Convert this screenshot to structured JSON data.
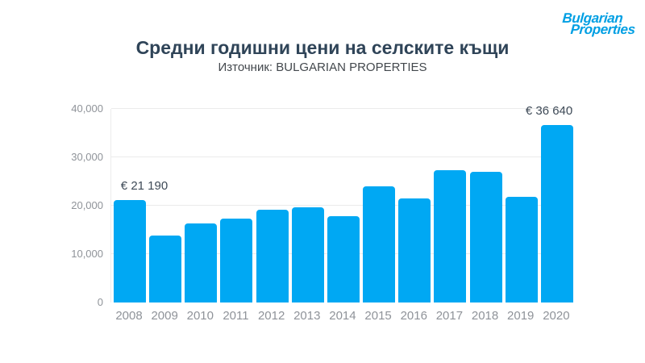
{
  "header": {
    "title": "Средни годишни цени на селските къщи",
    "subtitle": "Източник: BULGARIAN PROPERTIES",
    "logo": {
      "line1": "Bulgarian",
      "line2": "Properties",
      "color": "#009FE3"
    }
  },
  "chart_data": {
    "type": "bar",
    "title": "Средни годишни цени на селските къщи",
    "subtitle": "Източник: BULGARIAN PROPERTIES",
    "categories": [
      "2008",
      "2009",
      "2010",
      "2011",
      "2012",
      "2013",
      "2014",
      "2015",
      "2016",
      "2017",
      "2018",
      "2019",
      "2020"
    ],
    "values": [
      21190,
      13900,
      16300,
      17300,
      19200,
      19700,
      17900,
      24000,
      21500,
      27400,
      27000,
      21900,
      36640
    ],
    "xlabel": "",
    "ylabel": "",
    "ylim": [
      0,
      40000
    ],
    "yticks": [
      0,
      10000,
      20000,
      30000,
      40000
    ],
    "ytick_labels": [
      "0",
      "10,000",
      "20,000",
      "30,000",
      "40,000"
    ],
    "grid": "horizontal",
    "legend": "none",
    "bar_color": "#00A8F3",
    "annotations": [
      {
        "year": "2008",
        "label": "€ 21 190"
      },
      {
        "year": "2020",
        "label": "€ 36 640"
      }
    ]
  }
}
